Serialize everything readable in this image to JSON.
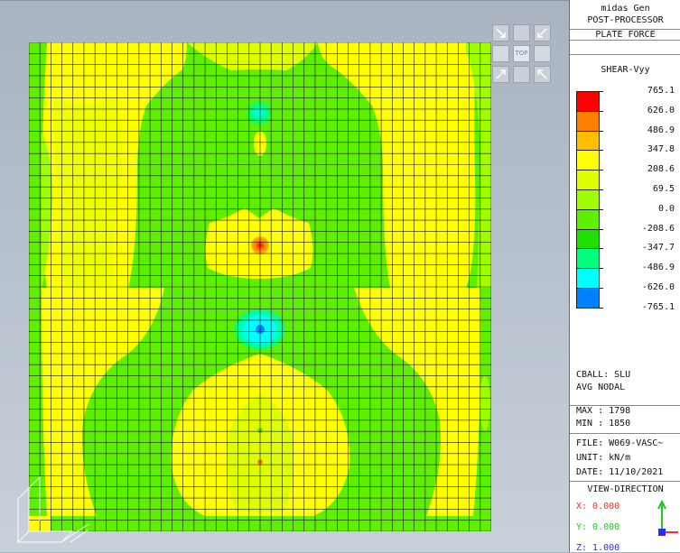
{
  "legend": {
    "program": "midas Gen",
    "module": "POST-PROCESSOR",
    "result_type": "PLATE FORCE",
    "component": "SHEAR-Vyy",
    "scale": [
      {
        "value": "765.1",
        "color": "#ff0000"
      },
      {
        "value": "626.0",
        "color": "#ff7f00"
      },
      {
        "value": "486.9",
        "color": "#ffbf00"
      },
      {
        "value": "347.8",
        "color": "#ffff00"
      },
      {
        "value": "208.6",
        "color": "#dfff00"
      },
      {
        "value": "69.5",
        "color": "#9fff00"
      },
      {
        "value": "0.0",
        "color": "#5fef00"
      },
      {
        "value": "-208.6",
        "color": "#1fdf00"
      },
      {
        "value": "-347.7",
        "color": "#00ff7f"
      },
      {
        "value": "-486.9",
        "color": "#00ffff"
      },
      {
        "value": "-626.0",
        "color": "#007fff"
      },
      {
        "value": "-765.1",
        "color": ""
      }
    ],
    "load_case": "CBALL: SLU",
    "averaging": "AVG NODAL",
    "max": "MAX : 1798",
    "min": "MIN : 1850",
    "file": "FILE: W069-VASC~",
    "unit": "UNIT: kN/m",
    "date": "DATE: 11/10/2021",
    "view_direction_title": "VIEW-DIRECTION",
    "view_x": "X: 0.000",
    "view_y": "Y: 0.000",
    "view_z": "Z: 1.000"
  },
  "nav_cube": {
    "top_label": "TOP"
  },
  "contour_colors": {
    "yellow": "#ffff00",
    "yellow_green": "#dfff00",
    "light_green": "#9fff00",
    "green": "#5fef00",
    "cyan": "#00ffff",
    "teal": "#00ff7f",
    "blue": "#007fff",
    "red": "#ff0000",
    "orange": "#ff7f00",
    "mesh_line": "#1a1a1a"
  }
}
